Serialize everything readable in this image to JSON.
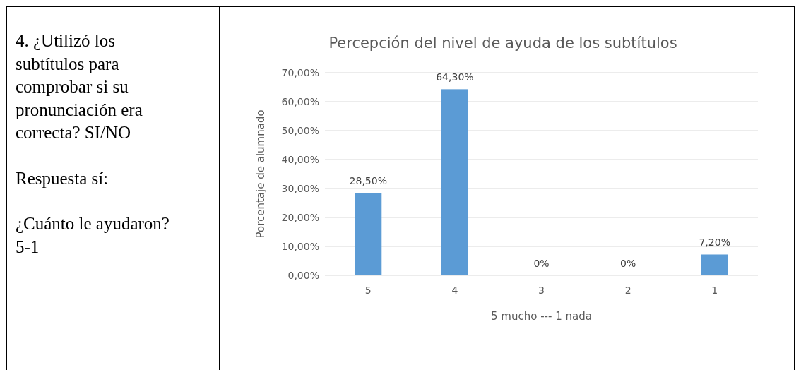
{
  "chart_data": {
    "type": "bar",
    "title": "Percepción del nivel de ayuda de los subtítulos",
    "xlabel": "5 mucho --- 1 nada",
    "ylabel": "Porcentaje de alumnado",
    "annotations": [
      "4. ¿Utilizó los subtítulos para comprobar si su pronunciación era correcta? SI/NO",
      "Respuesta sí:",
      "¿Cuánto le ayudaron? 5-1"
    ],
    "categories": [
      "5",
      "4",
      "3",
      "2",
      "1"
    ],
    "values": [
      28.5,
      64.3,
      0,
      0,
      7.2
    ],
    "value_labels": [
      "28,50%",
      "64,30%",
      "0%",
      "0%",
      "7,20%"
    ],
    "color": "#5b9bd5",
    "ylim": [
      0,
      70
    ],
    "yticks": [
      {
        "value": 0,
        "label": "0,00%"
      },
      {
        "value": 10,
        "label": "10,00%"
      },
      {
        "value": 20,
        "label": "20,00%"
      },
      {
        "value": 30,
        "label": "30,00%"
      },
      {
        "value": 40,
        "label": "40,00%"
      },
      {
        "value": 50,
        "label": "50,00%"
      },
      {
        "value": 60,
        "label": "60,00%"
      },
      {
        "value": 70,
        "label": "70,00%"
      }
    ],
    "grid": "y"
  }
}
